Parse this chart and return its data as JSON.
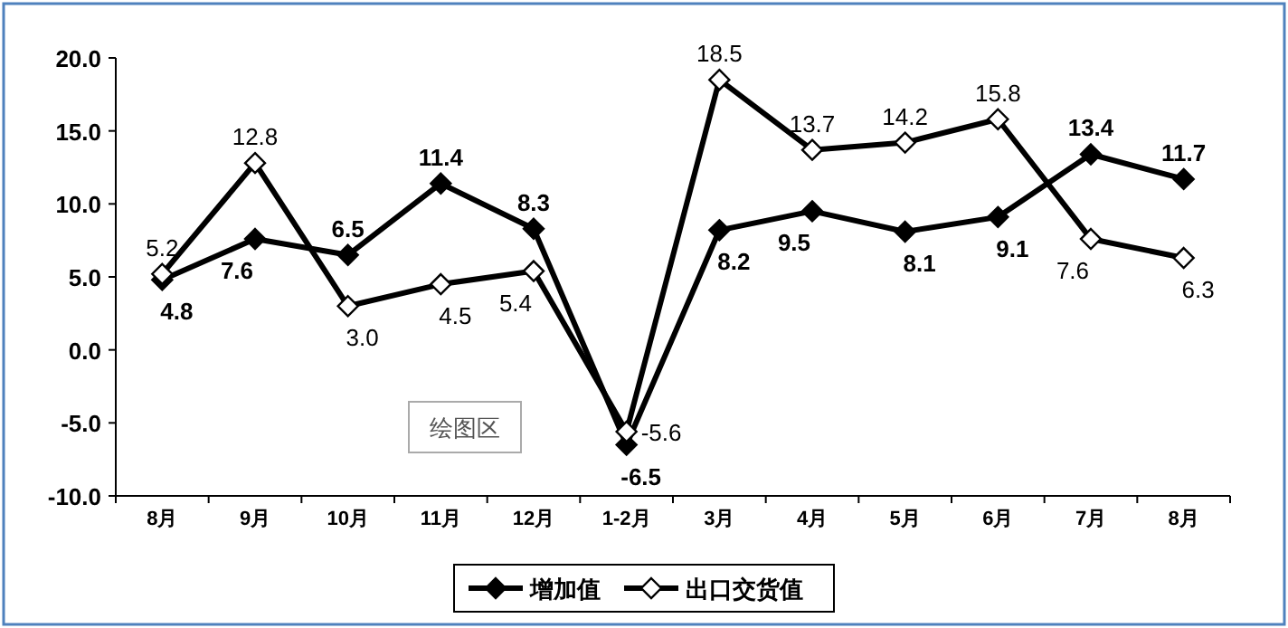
{
  "chart_data": {
    "type": "line",
    "categories": [
      "8月",
      "9月",
      "10月",
      "11月",
      "12月",
      "1-2月",
      "3月",
      "4月",
      "5月",
      "6月",
      "7月",
      "8月"
    ],
    "series": [
      {
        "name": "增加值",
        "color": "#000000",
        "values": [
          4.8,
          7.6,
          6.5,
          11.4,
          8.3,
          -6.5,
          8.2,
          9.5,
          8.1,
          9.1,
          13.4,
          11.7
        ],
        "value_labels": [
          "4.8",
          "7.6",
          "6.5",
          "11.4",
          "8.3",
          "-6.5",
          "8.2",
          "9.5",
          "8.1",
          "9.1",
          "13.4",
          "11.7"
        ]
      },
      {
        "name": "出口交货值",
        "color": "#000000",
        "values": [
          5.2,
          12.8,
          3.0,
          4.5,
          5.4,
          -5.6,
          18.5,
          13.7,
          14.2,
          15.8,
          7.6,
          6.3
        ],
        "value_labels": [
          "5.2",
          "12.8",
          "3.0",
          "4.5",
          "5.4",
          "-5.6",
          "18.5",
          "13.7",
          "14.2",
          "15.8",
          "7.6",
          "6.3"
        ]
      }
    ],
    "ylim": [
      -10,
      20
    ],
    "yticks": [
      {
        "value": -10,
        "label": "-10.0"
      },
      {
        "value": -5,
        "label": "-5.0"
      },
      {
        "value": 0,
        "label": "0.0"
      },
      {
        "value": 5,
        "label": "5.0"
      },
      {
        "value": 10,
        "label": "10.0"
      },
      {
        "value": 15,
        "label": "15.0"
      },
      {
        "value": 20,
        "label": "20.0"
      }
    ],
    "marker": "diamond",
    "line_style": "solid",
    "legend": "bottom",
    "annotations": [
      "绘图区"
    ]
  }
}
